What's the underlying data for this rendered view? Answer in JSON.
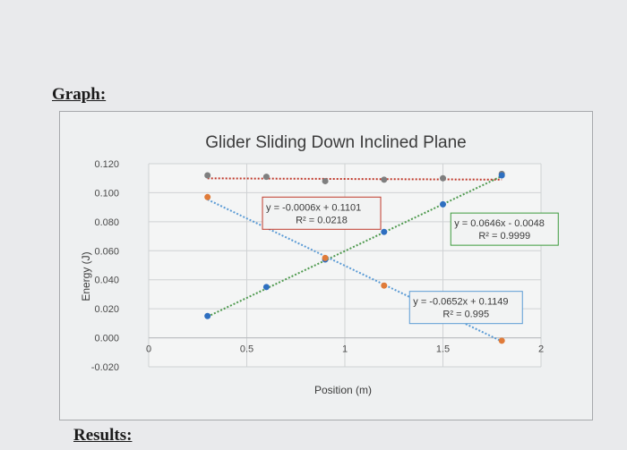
{
  "page": {
    "graph_heading": "Graph:",
    "results_heading": "Results:"
  },
  "chart_data": {
    "type": "scatter",
    "title": "Glider Sliding Down Inclined Plane",
    "xlabel": "Position (m)",
    "ylabel": "Energy (J)",
    "xlim": [
      0,
      2
    ],
    "ylim": [
      -0.02,
      0.12
    ],
    "x_ticks": [
      "0",
      "0.5",
      "1",
      "1.5",
      "2"
    ],
    "y_ticks": [
      "-0.020",
      "0.000",
      "0.020",
      "0.040",
      "0.060",
      "0.080",
      "0.100",
      "0.120"
    ],
    "grid": true,
    "series": [
      {
        "color": "#7f7f7f",
        "x": [
          0.3,
          0.6,
          0.9,
          1.2,
          1.5,
          1.8
        ],
        "y": [
          0.112,
          0.111,
          0.108,
          0.109,
          0.11,
          0.113
        ],
        "trendline": {
          "slope": -0.0006,
          "intercept": 0.1101,
          "equation": "y = -0.0006x + 0.1101",
          "r2": "R² = 0.0218",
          "line_color": "#c0392b",
          "box_color": "#c0392b"
        }
      },
      {
        "color": "#2e6fc0",
        "x": [
          0.3,
          0.6,
          0.9,
          1.2,
          1.5,
          1.8
        ],
        "y": [
          0.015,
          0.035,
          0.054,
          0.073,
          0.092,
          0.112
        ],
        "trendline": {
          "slope": 0.0646,
          "intercept": -0.0048,
          "equation": "y = 0.0646x - 0.0048",
          "r2": "R² = 0.9999",
          "line_color": "#4f9a4f",
          "box_color": "#3c9a3c"
        }
      },
      {
        "color": "#e07b39",
        "x": [
          0.3,
          0.6,
          0.9,
          1.2,
          1.5,
          1.8
        ],
        "y": [
          0.097,
          0.077,
          0.055,
          0.036,
          0.017,
          -0.002
        ],
        "trendline": {
          "slope": -0.0652,
          "intercept": 0.1149,
          "equation": "y = -0.0652x + 0.1149",
          "r2": "R² = 0.995",
          "line_color": "#5b9bd5",
          "box_color": "#5b9bd5"
        }
      }
    ]
  }
}
